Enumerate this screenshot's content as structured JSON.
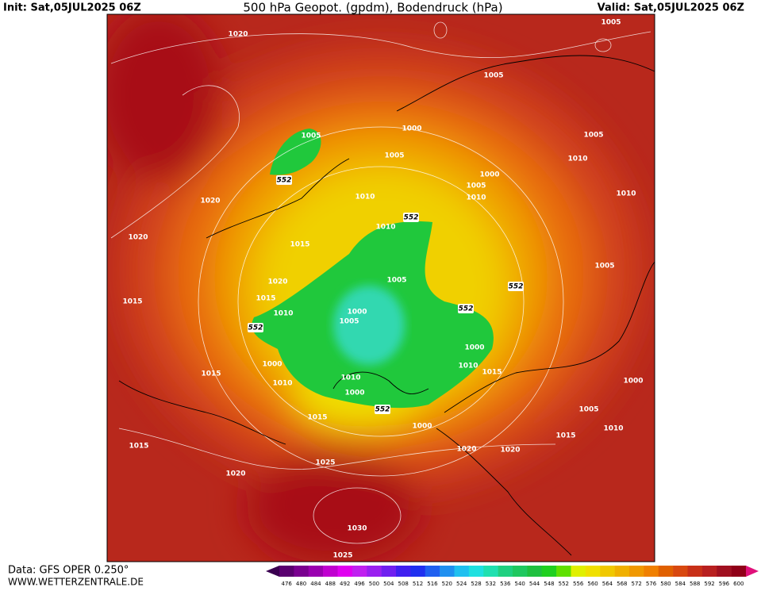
{
  "header": {
    "init": "Init: Sat,05JUL2025 06Z",
    "title": "500 hPa Geopot. (gpdm), Bodendruck (hPa)",
    "valid": "Valid: Sat,05JUL2025 06Z"
  },
  "footer": {
    "data": "Data: GFS OPER 0.250°",
    "site": "WWW.WETTERZENTRALE.DE"
  },
  "colorbar": {
    "levels": [
      476,
      480,
      484,
      488,
      492,
      496,
      500,
      504,
      508,
      512,
      516,
      520,
      524,
      528,
      532,
      536,
      540,
      544,
      548,
      552,
      556,
      560,
      564,
      568,
      572,
      576,
      580,
      584,
      588,
      592,
      596,
      600
    ],
    "colors": [
      "#5a0070",
      "#7a0090",
      "#9a00b0",
      "#c000d0",
      "#e000f0",
      "#c020f0",
      "#9a20f0",
      "#7020f0",
      "#4020f0",
      "#2030f0",
      "#2060f0",
      "#2090f0",
      "#20c0f0",
      "#20e0e0",
      "#20e0b0",
      "#20d080",
      "#20c860",
      "#20c040",
      "#20d020",
      "#60e000",
      "#e0f000",
      "#f0e000",
      "#f0c800",
      "#f0b000",
      "#f09800",
      "#f08000",
      "#e06000",
      "#d84810",
      "#c83018",
      "#b82020",
      "#a01020",
      "#900018"
    ]
  },
  "map": {
    "contour_labels": [
      1020,
      1005,
      1005,
      1000,
      1005,
      1005,
      1005,
      1010,
      1000,
      1005,
      552,
      1010,
      1020,
      1010,
      1010,
      552,
      1010,
      1020,
      1015,
      1005,
      1005,
      552,
      1020,
      1015,
      1015,
      1010,
      552,
      1000,
      1005,
      552,
      1000,
      1000,
      1010,
      1015,
      1015,
      1010,
      1010,
      1000,
      1000,
      552,
      1005,
      1015,
      1000,
      1010,
      1015,
      1015,
      1020,
      1020,
      1025,
      1020,
      1030,
      1025
    ]
  }
}
